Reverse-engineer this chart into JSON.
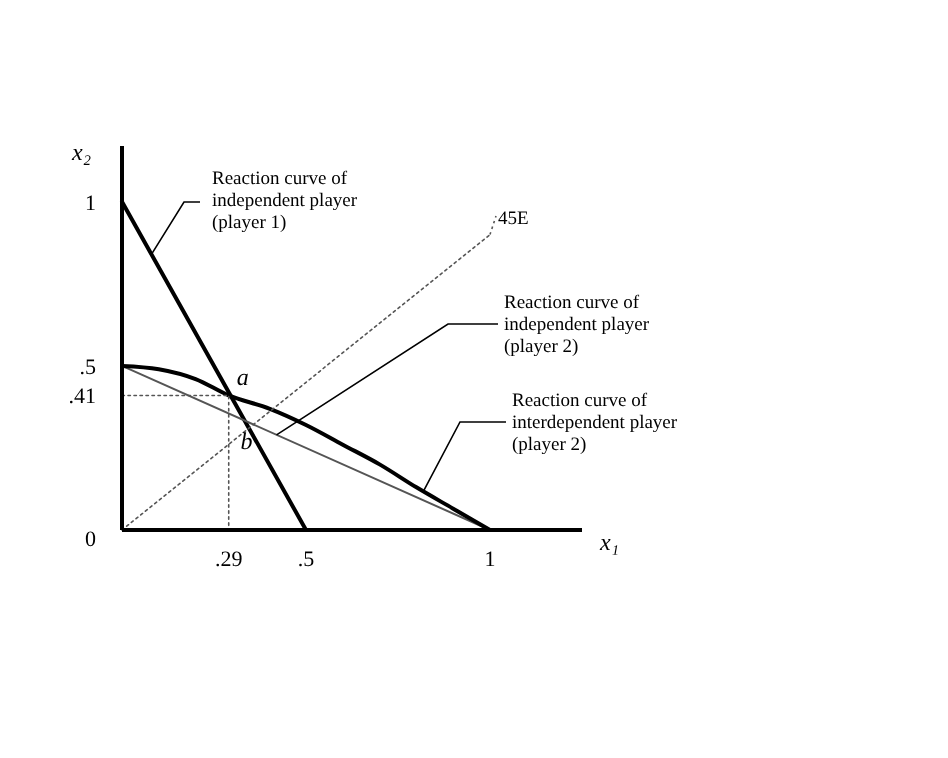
{
  "chart_data": {
    "type": "line",
    "xlabel": "x₁",
    "ylabel": "x₂",
    "xlim": [
      0,
      1.25
    ],
    "ylim": [
      0,
      1.17
    ],
    "xticks": [
      {
        "value": 0.29,
        "label": ".29"
      },
      {
        "value": 0.5,
        "label": ".5"
      },
      1
    ],
    "yticks": [
      0,
      {
        "value": 0.41,
        "label": ".41"
      },
      {
        "value": 0.5,
        "label": ".5"
      },
      1
    ],
    "grid": false,
    "marker": "none",
    "series": [
      {
        "color": "#000000",
        "x": [
          0,
          0.5
        ],
        "values": [
          1,
          0
        ]
      },
      {
        "color": "#555555",
        "x": [
          0,
          1
        ],
        "values": [
          0.5,
          0
        ]
      },
      {
        "color": "#000000",
        "x": [
          0,
          0.1,
          0.2,
          0.29,
          0.4,
          0.5,
          0.6,
          0.7,
          0.8,
          0.9,
          1
        ],
        "values": [
          0.5,
          0.49,
          0.46,
          0.41,
          0.37,
          0.32,
          0.26,
          0.2,
          0.13,
          0.065,
          0
        ]
      },
      {
        "color": "#555555",
        "line_style": "dotted",
        "x": [
          0,
          1
        ],
        "values": [
          0,
          0.9
        ]
      },
      {
        "color": "#555555",
        "line_style": "dotted",
        "x": [
          0,
          0.29,
          0.29
        ],
        "values": [
          0.41,
          0.41,
          0
        ]
      }
    ],
    "annotations": [
      {
        "text": "Reaction curve of\nindependent player\n(player 1)",
        "x": 0.08,
        "y": 0.84
      },
      {
        "text": "45E",
        "x": 1,
        "y": 0.9
      },
      {
        "text": "Reaction curve of\nindependent player\n(player 2)",
        "x": 0.42,
        "y": 0.29
      },
      {
        "text": "Reaction curve of\ninterdependent player\n(player 2)",
        "x": 0.82,
        "y": 0.12
      },
      {
        "text": "a",
        "x": 0.29,
        "y": 0.41
      },
      {
        "text": "b",
        "x": 0.333,
        "y": 0.333
      }
    ]
  }
}
